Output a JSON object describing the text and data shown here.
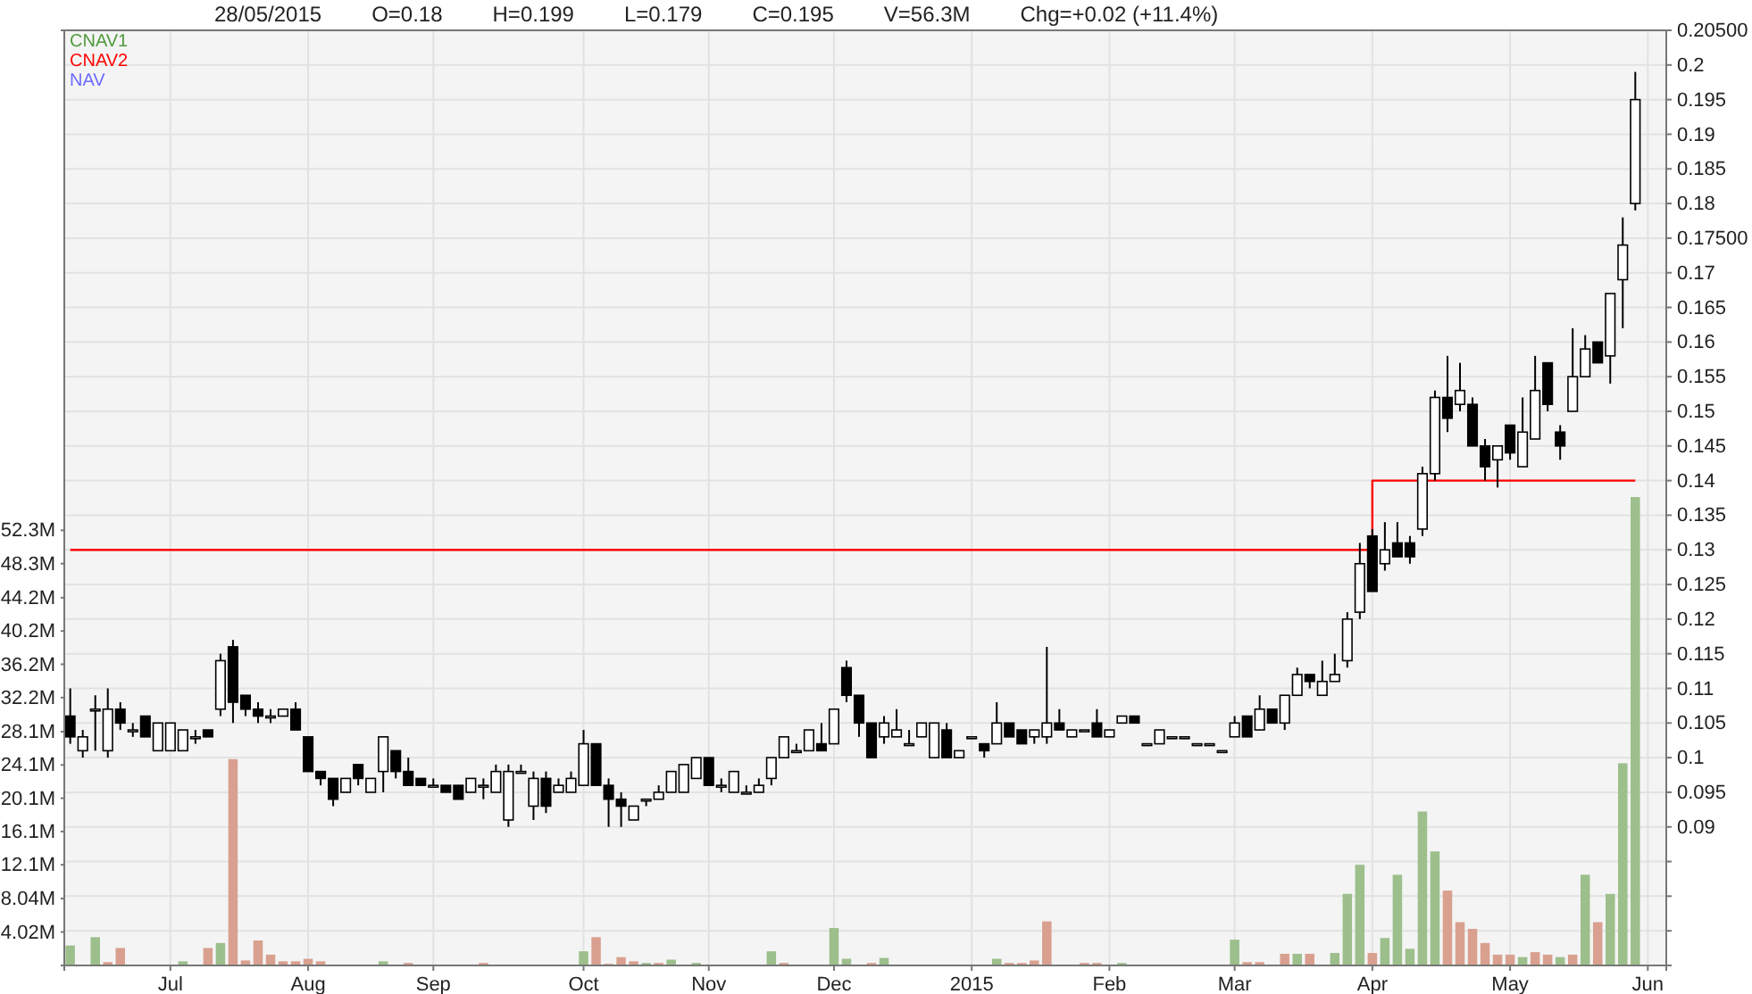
{
  "chart_data": {
    "type": "candlestick",
    "annotations": [
      "28/05/2015",
      "O=0.18",
      "H=0.199",
      "L=0.179",
      "C=0.195",
      "V=56.3M",
      "Chg=+0.02 (+11.4%)"
    ],
    "categories": [
      null,
      null,
      null,
      null,
      null,
      null,
      null,
      null,
      "Jul",
      null,
      null,
      null,
      null,
      null,
      null,
      null,
      null,
      null,
      null,
      "Aug",
      null,
      null,
      null,
      null,
      null,
      null,
      null,
      null,
      null,
      "Sep",
      null,
      null,
      null,
      null,
      null,
      null,
      null,
      null,
      null,
      null,
      null,
      "Oct",
      null,
      null,
      null,
      null,
      null,
      null,
      null,
      null,
      null,
      "Nov",
      null,
      null,
      null,
      null,
      null,
      null,
      null,
      null,
      null,
      "Dec",
      null,
      null,
      null,
      null,
      null,
      null,
      null,
      null,
      null,
      null,
      "2015",
      null,
      null,
      null,
      null,
      null,
      null,
      null,
      null,
      null,
      null,
      "Feb",
      null,
      null,
      null,
      null,
      null,
      null,
      null,
      null,
      null,
      "Mar",
      null,
      null,
      null,
      null,
      null,
      null,
      null,
      null,
      null,
      null,
      "Apr",
      null,
      null,
      null,
      null,
      null,
      null,
      null,
      null,
      null,
      null,
      "May",
      null,
      null,
      null,
      null,
      null,
      null,
      null,
      null,
      null,
      null,
      "Jun",
      null
    ],
    "ohlc": [
      [
        0.106,
        0.11,
        0.102,
        0.103
      ],
      [
        0.101,
        0.104,
        0.1,
        0.103
      ],
      [
        0.107,
        0.109,
        0.101,
        0.107
      ],
      [
        0.101,
        0.11,
        0.1,
        0.107
      ],
      [
        0.107,
        0.108,
        0.104,
        0.105
      ],
      [
        0.104,
        0.105,
        0.103,
        0.104
      ],
      [
        0.106,
        0.106,
        0.103,
        0.103
      ],
      [
        0.101,
        0.105,
        0.101,
        0.105
      ],
      [
        0.101,
        0.105,
        0.101,
        0.105
      ],
      [
        0.101,
        0.104,
        0.101,
        0.104
      ],
      [
        0.103,
        0.104,
        0.102,
        0.103
      ],
      [
        0.104,
        0.104,
        0.103,
        0.103
      ],
      [
        0.107,
        0.115,
        0.106,
        0.114
      ],
      [
        0.116,
        0.117,
        0.105,
        0.108
      ],
      [
        0.109,
        0.109,
        0.106,
        0.107
      ],
      [
        0.107,
        0.108,
        0.105,
        0.106
      ],
      [
        0.106,
        0.107,
        0.105,
        0.106
      ],
      [
        0.106,
        0.107,
        0.106,
        0.107
      ],
      [
        0.107,
        0.108,
        0.104,
        0.104
      ],
      [
        0.103,
        0.103,
        0.098,
        0.098
      ],
      [
        0.098,
        0.098,
        0.096,
        0.097
      ],
      [
        0.097,
        0.097,
        0.093,
        0.094
      ],
      [
        0.095,
        0.097,
        0.095,
        0.097
      ],
      [
        0.099,
        0.099,
        0.096,
        0.097
      ],
      [
        0.095,
        0.097,
        0.095,
        0.097
      ],
      [
        0.098,
        0.103,
        0.095,
        0.103
      ],
      [
        0.101,
        0.101,
        0.097,
        0.098
      ],
      [
        0.098,
        0.1,
        0.096,
        0.096
      ],
      [
        0.097,
        0.097,
        0.096,
        0.096
      ],
      [
        0.096,
        0.097,
        0.096,
        0.096
      ],
      [
        0.096,
        0.096,
        0.095,
        0.095
      ],
      [
        0.096,
        0.096,
        0.094,
        0.094
      ],
      [
        0.095,
        0.097,
        0.095,
        0.097
      ],
      [
        0.096,
        0.097,
        0.094,
        0.096
      ],
      [
        0.095,
        0.099,
        0.095,
        0.098
      ],
      [
        0.091,
        0.099,
        0.09,
        0.098
      ],
      [
        0.098,
        0.099,
        0.098,
        0.098
      ],
      [
        0.093,
        0.098,
        0.091,
        0.097
      ],
      [
        0.097,
        0.098,
        0.092,
        0.093
      ],
      [
        0.095,
        0.097,
        0.095,
        0.096
      ],
      [
        0.095,
        0.098,
        0.095,
        0.097
      ],
      [
        0.096,
        0.104,
        0.096,
        0.102
      ],
      [
        0.102,
        0.102,
        0.096,
        0.096
      ],
      [
        0.096,
        0.097,
        0.09,
        0.094
      ],
      [
        0.094,
        0.095,
        0.09,
        0.093
      ],
      [
        0.091,
        0.093,
        0.091,
        0.093
      ],
      [
        0.094,
        0.094,
        0.093,
        0.094
      ],
      [
        0.094,
        0.096,
        0.094,
        0.095
      ],
      [
        0.095,
        0.098,
        0.095,
        0.098
      ],
      [
        0.095,
        0.099,
        0.095,
        0.099
      ],
      [
        0.097,
        0.1,
        0.097,
        0.1
      ],
      [
        0.1,
        0.1,
        0.096,
        0.096
      ],
      [
        0.096,
        0.097,
        0.095,
        0.096
      ],
      [
        0.095,
        0.098,
        0.095,
        0.098
      ],
      [
        0.095,
        0.096,
        0.095,
        0.095
      ],
      [
        0.095,
        0.097,
        0.095,
        0.096
      ],
      [
        0.097,
        0.1,
        0.096,
        0.1
      ],
      [
        0.1,
        0.103,
        0.1,
        0.103
      ],
      [
        0.101,
        0.102,
        0.101,
        0.101
      ],
      [
        0.101,
        0.104,
        0.101,
        0.104
      ],
      [
        0.102,
        0.105,
        0.101,
        0.101
      ],
      [
        0.102,
        0.107,
        0.102,
        0.107
      ],
      [
        0.113,
        0.114,
        0.108,
        0.109
      ],
      [
        0.109,
        0.109,
        0.103,
        0.105
      ],
      [
        0.105,
        0.105,
        0.1,
        0.1
      ],
      [
        0.103,
        0.106,
        0.102,
        0.105
      ],
      [
        0.103,
        0.107,
        0.103,
        0.104
      ],
      [
        0.102,
        0.104,
        0.102,
        0.102
      ],
      [
        0.103,
        0.105,
        0.103,
        0.105
      ],
      [
        0.1,
        0.105,
        0.1,
        0.105
      ],
      [
        0.104,
        0.105,
        0.1,
        0.1
      ],
      [
        0.1,
        0.101,
        0.1,
        0.101
      ],
      [
        0.103,
        0.103,
        0.103,
        0.103
      ],
      [
        0.102,
        0.102,
        0.1,
        0.101
      ],
      [
        0.102,
        0.108,
        0.102,
        0.105
      ],
      [
        0.105,
        0.105,
        0.103,
        0.103
      ],
      [
        0.104,
        0.104,
        0.102,
        0.102
      ],
      [
        0.103,
        0.104,
        0.102,
        0.104
      ],
      [
        0.103,
        0.116,
        0.102,
        0.105
      ],
      [
        0.105,
        0.107,
        0.104,
        0.104
      ],
      [
        0.103,
        0.104,
        0.103,
        0.104
      ],
      [
        0.104,
        0.104,
        0.104,
        0.104
      ],
      [
        0.105,
        0.107,
        0.103,
        0.103
      ],
      [
        0.103,
        0.104,
        0.103,
        0.104
      ],
      [
        0.105,
        0.106,
        0.105,
        0.106
      ],
      [
        0.106,
        0.106,
        0.105,
        0.105
      ],
      [
        0.102,
        0.102,
        0.102,
        0.102
      ],
      [
        0.102,
        0.104,
        0.102,
        0.104
      ],
      [
        0.103,
        0.103,
        0.103,
        0.103
      ],
      [
        0.103,
        0.103,
        0.103,
        0.103
      ],
      [
        0.102,
        0.102,
        0.102,
        0.102
      ],
      [
        0.102,
        0.102,
        0.102,
        0.102
      ],
      [
        0.101,
        0.101,
        0.101,
        0.101
      ],
      [
        0.103,
        0.106,
        0.103,
        0.105
      ],
      [
        0.106,
        0.106,
        0.103,
        0.103
      ],
      [
        0.104,
        0.109,
        0.104,
        0.107
      ],
      [
        0.107,
        0.107,
        0.105,
        0.105
      ],
      [
        0.105,
        0.109,
        0.104,
        0.109
      ],
      [
        0.109,
        0.113,
        0.109,
        0.112
      ],
      [
        0.112,
        0.112,
        0.11,
        0.111
      ],
      [
        0.109,
        0.114,
        0.109,
        0.111
      ],
      [
        0.111,
        0.115,
        0.111,
        0.112
      ],
      [
        0.114,
        0.121,
        0.113,
        0.12
      ],
      [
        0.121,
        0.131,
        0.12,
        0.128
      ],
      [
        0.132,
        0.133,
        0.124,
        0.124
      ],
      [
        0.128,
        0.134,
        0.127,
        0.13
      ],
      [
        0.131,
        0.134,
        0.129,
        0.129
      ],
      [
        0.131,
        0.132,
        0.128,
        0.129
      ],
      [
        0.133,
        0.142,
        0.132,
        0.141
      ],
      [
        0.141,
        0.153,
        0.14,
        0.152
      ],
      [
        0.152,
        0.158,
        0.147,
        0.149
      ],
      [
        0.151,
        0.157,
        0.15,
        0.153
      ],
      [
        0.151,
        0.152,
        0.145,
        0.145
      ],
      [
        0.145,
        0.146,
        0.14,
        0.142
      ],
      [
        0.143,
        0.145,
        0.139,
        0.145
      ],
      [
        0.148,
        0.148,
        0.143,
        0.144
      ],
      [
        0.142,
        0.152,
        0.142,
        0.147
      ],
      [
        0.146,
        0.158,
        0.146,
        0.153
      ],
      [
        0.157,
        0.157,
        0.15,
        0.151
      ],
      [
        0.147,
        0.148,
        0.143,
        0.145
      ],
      [
        0.15,
        0.162,
        0.15,
        0.155
      ],
      [
        0.155,
        0.161,
        0.155,
        0.159
      ],
      [
        0.16,
        0.16,
        0.157,
        0.157
      ],
      [
        0.158,
        0.167,
        0.154,
        0.167
      ],
      [
        0.169,
        0.178,
        0.162,
        0.174
      ],
      [
        0.18,
        0.199,
        0.179,
        0.195
      ],
      null,
      null
    ],
    "series": [
      {
        "name": "CNAV1",
        "type": "line",
        "color": "#4f9a3c",
        "values": [
          null,
          null,
          null,
          null,
          null,
          null,
          null,
          null,
          null,
          null,
          null,
          null,
          null,
          null,
          null,
          null,
          null,
          null,
          null,
          null,
          null,
          null,
          null,
          null,
          null,
          null,
          null,
          null,
          null,
          null,
          null,
          null,
          null,
          null,
          null,
          null,
          null,
          null,
          null,
          null,
          null,
          null,
          null,
          null,
          null,
          null,
          null,
          null,
          null,
          null,
          null,
          null,
          null,
          null,
          null,
          null,
          null,
          null,
          null,
          null,
          null,
          null,
          null,
          null,
          null,
          null,
          null,
          null,
          null,
          null,
          null,
          null,
          null,
          null,
          null,
          null,
          null,
          null,
          null,
          null,
          null,
          null,
          null,
          null,
          null,
          null,
          null,
          null,
          null,
          null,
          null,
          null,
          null,
          null,
          null,
          null,
          null,
          null,
          null,
          null,
          null,
          null,
          null,
          null,
          null,
          null,
          null,
          null,
          null,
          null,
          null,
          null,
          null,
          null,
          null,
          null,
          null,
          null,
          null,
          null,
          null,
          null,
          null,
          null,
          null,
          null,
          null,
          null
        ]
      },
      {
        "name": "CNAV2",
        "type": "step",
        "color": "#ff0000",
        "values": [
          0.13,
          0.13,
          0.13,
          0.13,
          0.13,
          0.13,
          0.13,
          0.13,
          0.13,
          0.13,
          0.13,
          0.13,
          0.13,
          0.13,
          0.13,
          0.13,
          0.13,
          0.13,
          0.13,
          0.13,
          0.13,
          0.13,
          0.13,
          0.13,
          0.13,
          0.13,
          0.13,
          0.13,
          0.13,
          0.13,
          0.13,
          0.13,
          0.13,
          0.13,
          0.13,
          0.13,
          0.13,
          0.13,
          0.13,
          0.13,
          0.13,
          0.13,
          0.13,
          0.13,
          0.13,
          0.13,
          0.13,
          0.13,
          0.13,
          0.13,
          0.13,
          0.13,
          0.13,
          0.13,
          0.13,
          0.13,
          0.13,
          0.13,
          0.13,
          0.13,
          0.13,
          0.13,
          0.13,
          0.13,
          0.13,
          0.13,
          0.13,
          0.13,
          0.13,
          0.13,
          0.13,
          0.13,
          0.13,
          0.13,
          0.13,
          0.13,
          0.13,
          0.13,
          0.13,
          0.13,
          0.13,
          0.13,
          0.13,
          0.13,
          0.13,
          0.13,
          0.13,
          0.13,
          0.13,
          0.13,
          0.13,
          0.13,
          0.13,
          0.13,
          0.13,
          0.13,
          0.13,
          0.13,
          0.13,
          0.13,
          0.13,
          0.13,
          0.13,
          0.13,
          0.14,
          0.14,
          0.14,
          0.14,
          0.14,
          0.14,
          0.14,
          0.14,
          0.14,
          0.14,
          0.14,
          0.14,
          0.14,
          0.14,
          0.14,
          0.14,
          0.14,
          0.14,
          0.14,
          0.14,
          0.14,
          0.14,
          null,
          null
        ]
      },
      {
        "name": "NAV",
        "type": "line",
        "color": "#6b6bff",
        "values": [
          null,
          null,
          null,
          null,
          null,
          null,
          null,
          null,
          null,
          null,
          null,
          null,
          null,
          null,
          null,
          null,
          null,
          null,
          null,
          null,
          null,
          null,
          null,
          null,
          null,
          null,
          null,
          null,
          null,
          null,
          null,
          null,
          null,
          null,
          null,
          null,
          null,
          null,
          null,
          null,
          null,
          null,
          null,
          null,
          null,
          null,
          null,
          null,
          null,
          null,
          null,
          null,
          null,
          null,
          null,
          null,
          null,
          null,
          null,
          null,
          null,
          null,
          null,
          null,
          null,
          null,
          null,
          null,
          null,
          null,
          null,
          null,
          null,
          null,
          null,
          null,
          null,
          null,
          null,
          null,
          null,
          null,
          null,
          null,
          null,
          null,
          null,
          null,
          null,
          null,
          null,
          null,
          null,
          null,
          null,
          null,
          null,
          null,
          null,
          null,
          null,
          null,
          null,
          null,
          null,
          null,
          null,
          null,
          null,
          null,
          null,
          null,
          null,
          null,
          null,
          null,
          null,
          null,
          null,
          null,
          null,
          null,
          null,
          null,
          null,
          null,
          null,
          null
        ]
      },
      {
        "type": "bar",
        "axis": "y2",
        "values": [
          2.4,
          null,
          3.4,
          0.4,
          2.1,
          null,
          null,
          null,
          null,
          0.5,
          null,
          2.1,
          2.7,
          24.8,
          0.6,
          3.0,
          1.3,
          0.5,
          0.5,
          0.8,
          0.5,
          null,
          null,
          null,
          null,
          0.5,
          null,
          0.3,
          null,
          null,
          null,
          null,
          null,
          0.3,
          null,
          null,
          null,
          null,
          null,
          null,
          null,
          1.7,
          3.4,
          0.2,
          1.0,
          0.5,
          0.3,
          0.3,
          0.7,
          null,
          0.3,
          null,
          null,
          null,
          null,
          null,
          1.7,
          0.3,
          null,
          null,
          null,
          4.5,
          0.8,
          null,
          0.3,
          0.9,
          null,
          null,
          null,
          null,
          null,
          null,
          null,
          null,
          0.8,
          0.3,
          0.3,
          0.6,
          5.3,
          null,
          null,
          0.3,
          0.3,
          null,
          0.3,
          null,
          null,
          null,
          null,
          null,
          null,
          null,
          null,
          3.1,
          0.4,
          0.4,
          null,
          1.4,
          1.4,
          1.4,
          null,
          1.5,
          8.6,
          12.1,
          1.5,
          3.3,
          10.9,
          2.0,
          18.5,
          13.7,
          9.0,
          5.2,
          4.4,
          2.7,
          1.3,
          1.3,
          1.0,
          1.6,
          1.3,
          1.0,
          1.3,
          10.9,
          5.2,
          8.6,
          24.3,
          56.3,
          null,
          null
        ],
        "colors": [
          "#9cbf8c",
          null,
          "#9cbf8c",
          "#d9a08f",
          "#d9a08f",
          null,
          null,
          null,
          null,
          "#9cbf8c",
          null,
          "#d9a08f",
          "#9cbf8c",
          "#d9a08f",
          "#d9a08f",
          "#d9a08f",
          "#d9a08f",
          "#d9a08f",
          "#d9a08f",
          "#d9a08f",
          "#d9a08f",
          null,
          null,
          null,
          null,
          "#9cbf8c",
          null,
          "#d9a08f",
          null,
          null,
          null,
          null,
          null,
          "#d9a08f",
          null,
          null,
          null,
          null,
          null,
          null,
          null,
          "#9cbf8c",
          "#d9a08f",
          "#d9a08f",
          "#d9a08f",
          "#d9a08f",
          "#9cbf8c",
          "#d9a08f",
          "#9cbf8c",
          null,
          "#9cbf8c",
          null,
          null,
          null,
          null,
          null,
          "#9cbf8c",
          "#d9a08f",
          null,
          null,
          null,
          "#9cbf8c",
          "#9cbf8c",
          null,
          "#d9a08f",
          "#9cbf8c",
          null,
          null,
          null,
          null,
          null,
          null,
          null,
          null,
          "#9cbf8c",
          "#d9a08f",
          "#d9a08f",
          "#d9a08f",
          "#d9a08f",
          null,
          null,
          "#d9a08f",
          "#d9a08f",
          null,
          "#9cbf8c",
          null,
          null,
          null,
          null,
          null,
          null,
          null,
          null,
          "#9cbf8c",
          "#d9a08f",
          "#d9a08f",
          null,
          "#d9a08f",
          "#9cbf8c",
          "#d9a08f",
          null,
          "#9cbf8c",
          "#9cbf8c",
          "#9cbf8c",
          "#d9a08f",
          "#9cbf8c",
          "#9cbf8c",
          "#9cbf8c",
          "#9cbf8c",
          "#9cbf8c",
          "#d9a08f",
          "#d9a08f",
          "#d9a08f",
          "#d9a08f",
          "#d9a08f",
          "#d9a08f",
          "#9cbf8c",
          "#d9a08f",
          "#d9a08f",
          "#9cbf8c",
          "#d9a08f",
          "#9cbf8c",
          "#d9a08f",
          "#9cbf8c",
          "#9cbf8c",
          "#9cbf8c",
          null,
          null
        ]
      }
    ],
    "ylim": [
      0.07,
      0.205
    ],
    "yticks": [
      {
        "value": 0.075,
        "label": null
      },
      {
        "value": 0.08,
        "label": null
      },
      {
        "value": 0.085,
        "label": null
      },
      0.09,
      0.095,
      0.1,
      0.105,
      0.11,
      0.115,
      0.12,
      0.125,
      0.13,
      0.135,
      0.14,
      0.145,
      0.15,
      0.155,
      0.16,
      0.165,
      0.17,
      {
        "value": 0.175,
        "label": "0.17500"
      },
      0.18,
      0.185,
      0.19,
      0.195,
      0.2,
      {
        "value": 0.205,
        "label": "0.20500"
      }
    ],
    "y2lim": [
      0,
      112.4
    ],
    "y2ticks": [
      {
        "value": 4.02,
        "label": "4.02M"
      },
      {
        "value": 8.04,
        "label": "8.04M"
      },
      {
        "value": 12.1,
        "label": "12.1M"
      },
      {
        "value": 16.1,
        "label": "16.1M"
      },
      {
        "value": 20.1,
        "label": "20.1M"
      },
      {
        "value": 24.1,
        "label": "24.1M"
      },
      {
        "value": 28.1,
        "label": "28.1M"
      },
      {
        "value": 32.2,
        "label": "32.2M"
      },
      {
        "value": 36.2,
        "label": "36.2M"
      },
      {
        "value": 40.2,
        "label": "40.2M"
      },
      {
        "value": 44.2,
        "label": "44.2M"
      },
      {
        "value": 48.3,
        "label": "48.3M"
      },
      {
        "value": 52.3,
        "label": "52.3M"
      }
    ],
    "grid": true,
    "legend": "top left"
  }
}
